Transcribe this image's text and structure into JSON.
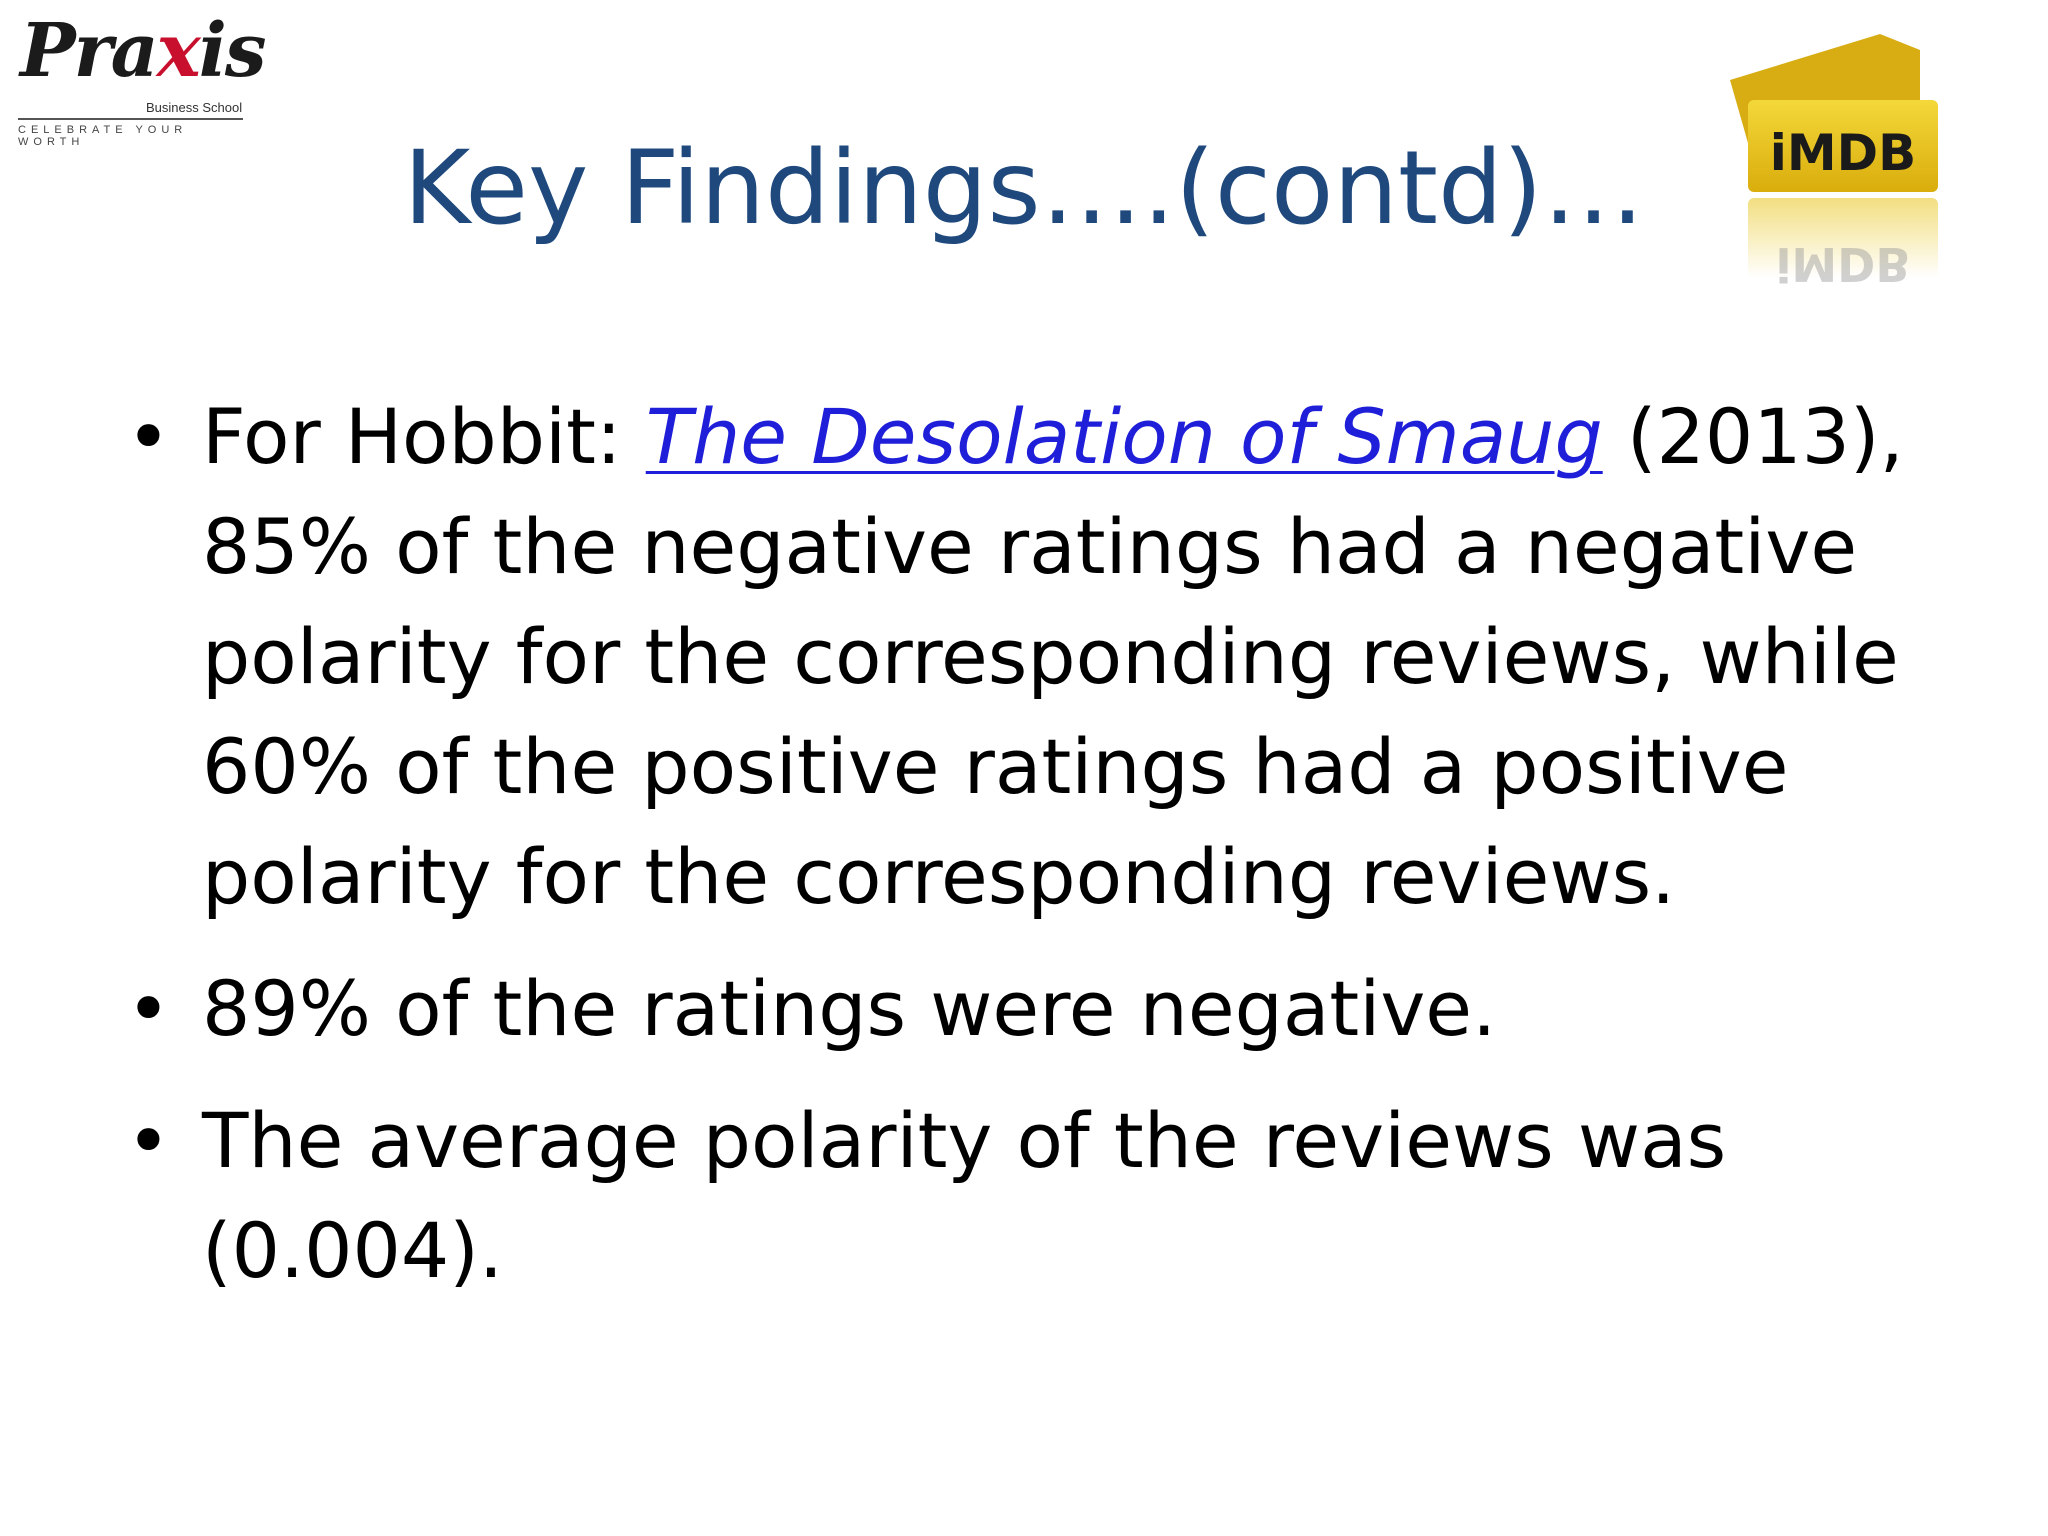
{
  "logos": {
    "praxis": {
      "word_pre": "Pra",
      "word_x": "x",
      "word_post": "is",
      "subtitle": "Business School",
      "tagline": "CELEBRATE YOUR WORTH"
    },
    "imdb": {
      "text": "iMDB",
      "accent": "#e8c41a"
    }
  },
  "title": "Key Findings….(contd)…",
  "bullets": [
    {
      "prefix": "For Hobbit: ",
      "link_text": "The Desolation of Smaug",
      "suffix": " (2013), 85% of the negative ratings had a negative polarity for the corresponding reviews, while 60% of the positive ratings had a positive polarity for the corresponding reviews."
    },
    {
      "text": "89% of the ratings were negative."
    },
    {
      "text": "The average polarity of the reviews was (0.004)."
    }
  ],
  "colors": {
    "title": "#1f497d",
    "link": "#1f1fd9",
    "body_text": "#000000"
  }
}
